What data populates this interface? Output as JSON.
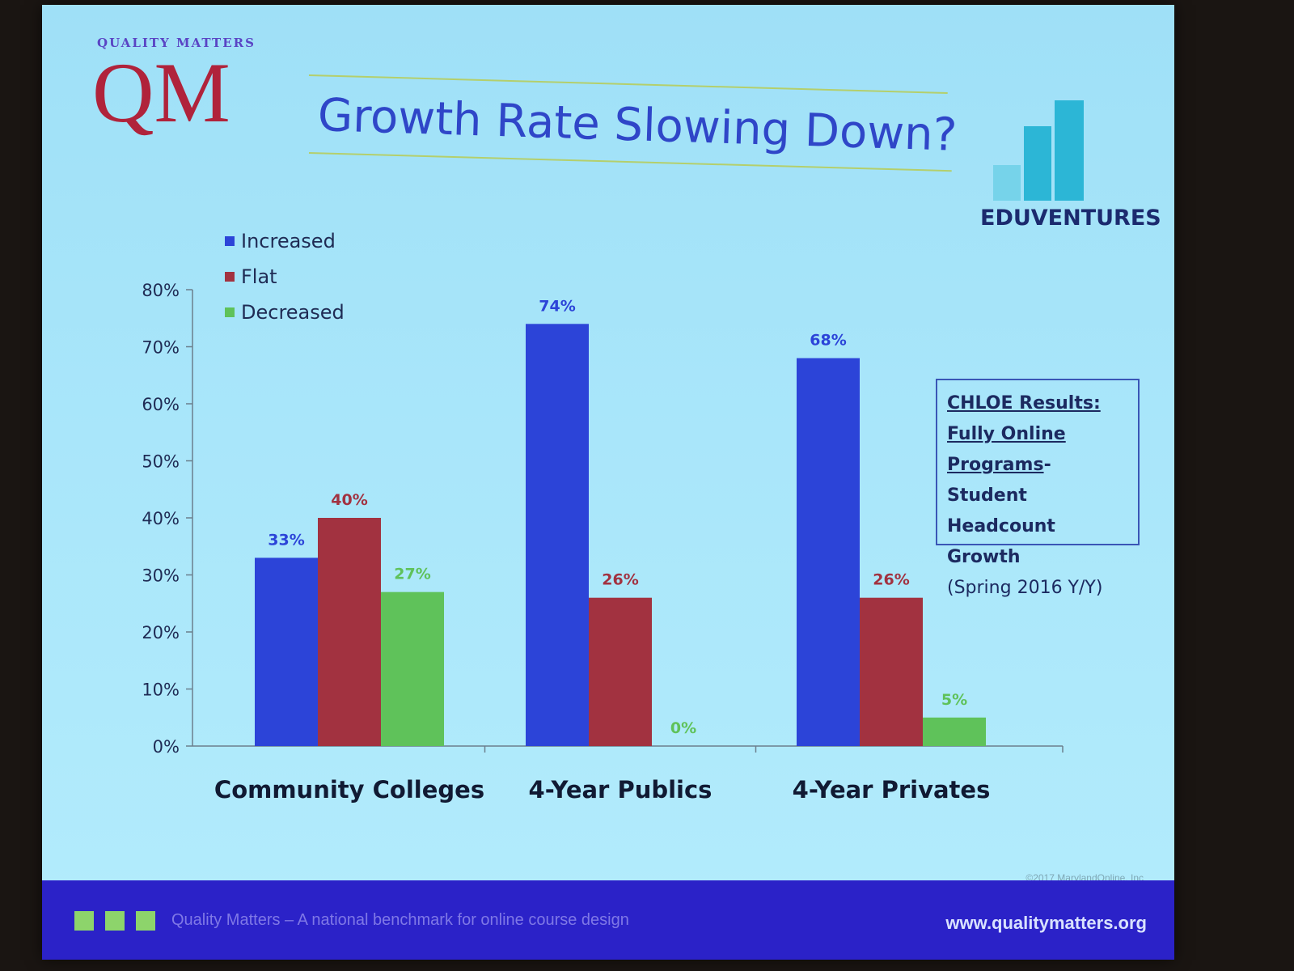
{
  "brand": {
    "qm_small": "QUALITY MATTERS",
    "qm_big": "QM",
    "partner": "EDUVENTURES"
  },
  "slide_title": "Growth Rate Slowing Down?",
  "note": {
    "line1": "CHLOE Results:",
    "line2": "Fully Online",
    "line3a": "Programs",
    "line3b": "- Student",
    "line4": "Headcount Growth",
    "line5": "(Spring 2016 Y/Y)"
  },
  "copyright": "©2017 MarylandOnline, Inc",
  "footer": {
    "tagline": "Quality Matters – A national benchmark for online course design",
    "url": "www.qualitymatters.org"
  },
  "colors": {
    "increased": "#2c44d8",
    "flat": "#a23240",
    "decreased": "#5fc25a",
    "title": "#2f46c8",
    "footer": "#2b22c8"
  },
  "chart_data": {
    "type": "bar",
    "categories": [
      "Community Colleges",
      "4-Year Publics",
      "4-Year Privates"
    ],
    "series": [
      {
        "name": "Increased",
        "values": [
          33,
          74,
          68
        ],
        "labels": [
          "33%",
          "74%",
          "68%"
        ]
      },
      {
        "name": "Flat",
        "values": [
          40,
          26,
          26
        ],
        "labels": [
          "40%",
          "26%",
          "26%"
        ]
      },
      {
        "name": "Decreased",
        "values": [
          27,
          0,
          5
        ],
        "labels": [
          "27%",
          "0%",
          "5%"
        ]
      }
    ],
    "ylim": [
      0,
      80
    ],
    "yticks": [
      "0%",
      "10%",
      "20%",
      "30%",
      "40%",
      "50%",
      "60%",
      "70%",
      "80%"
    ],
    "legend": "top-left",
    "grid": false
  }
}
